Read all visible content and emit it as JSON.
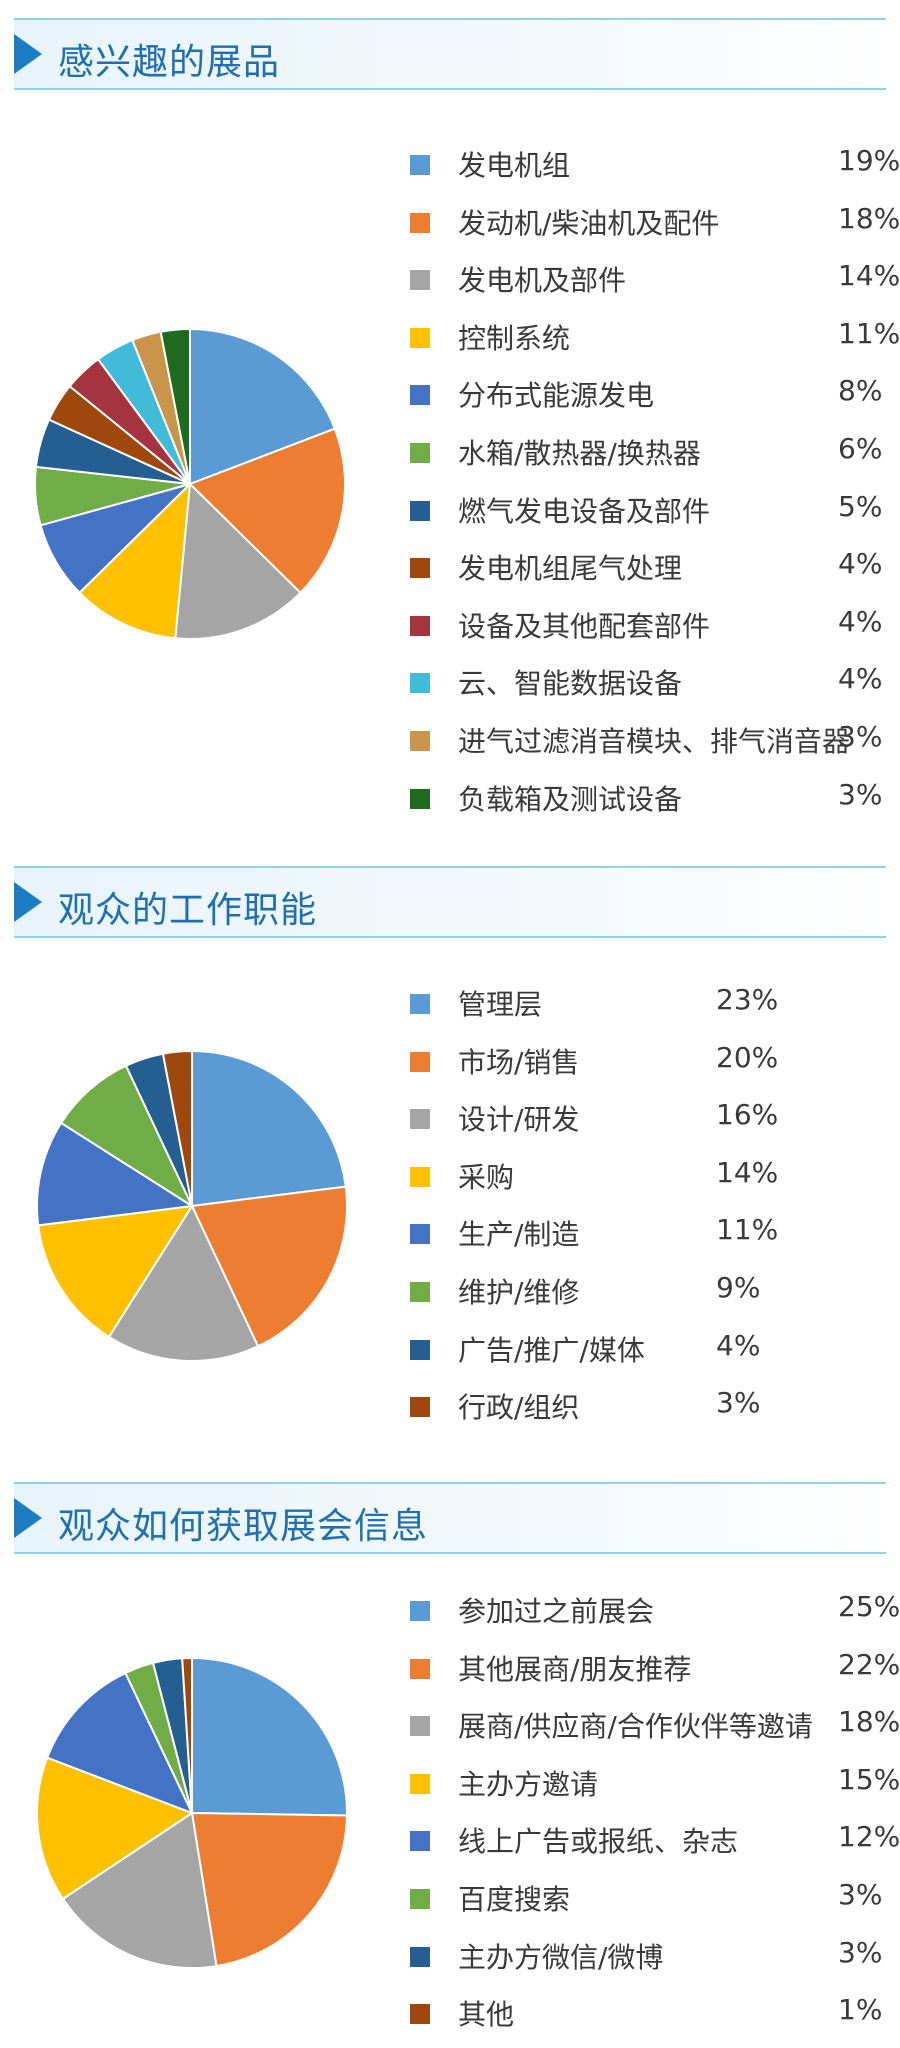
{
  "colors": [
    "#5b9bd5",
    "#ed7d31",
    "#a5a5a5",
    "#ffc000",
    "#4472c4",
    "#70ad47",
    "#255e91",
    "#9e480e",
    "#a5343f",
    "#40bcd8",
    "#c8954a",
    "#1e6a1e"
  ],
  "chart_data": [
    {
      "type": "pie",
      "title": "感兴趣的展品",
      "categories": [
        "发电机组",
        "发动机/柴油机及配件",
        "发电机及部件",
        "控制系统",
        "分布式能源发电",
        "水箱/散热器/换热器",
        "燃气发电设备及部件",
        "发电机组尾气处理",
        "设备及其他配套部件",
        "云、智能数据设备",
        "进气过滤消音模块、排气消音器",
        "负载箱及测试设备"
      ],
      "labels": [
        "19%",
        "18%",
        "14%",
        "11%",
        "8%",
        "6%",
        "5%",
        "4%",
        "4%",
        "4%",
        "3%",
        "3%"
      ],
      "values": [
        19,
        18,
        14,
        11,
        8,
        6,
        5,
        4,
        4,
        4,
        3,
        3
      ]
    },
    {
      "type": "pie",
      "title": "观众的工作职能",
      "categories": [
        "管理层",
        "市场/销售",
        "设计/研发",
        "采购",
        "生产/制造",
        "维护/维修",
        "广告/推广/媒体",
        "行政/组织"
      ],
      "labels": [
        "23%",
        "20%",
        "16%",
        "14%",
        "11%",
        "9%",
        "4%",
        "3%"
      ],
      "values": [
        23,
        20,
        16,
        14,
        11,
        9,
        4,
        3
      ]
    },
    {
      "type": "pie",
      "title": "观众如何获取展会信息",
      "categories": [
        "参加过之前展会",
        "其他展商/朋友推荐",
        "展商/供应商/合作伙伴等邀请",
        "主办方邀请",
        "线上广告或报纸、杂志",
        "百度搜索",
        "主办方微信/微博",
        "其他"
      ],
      "labels": [
        "25%",
        "22%",
        "18%",
        "15%",
        "12%",
        "3%",
        "3%",
        "1%"
      ],
      "values": [
        25,
        22,
        18,
        15,
        12,
        3,
        3,
        1
      ]
    }
  ]
}
